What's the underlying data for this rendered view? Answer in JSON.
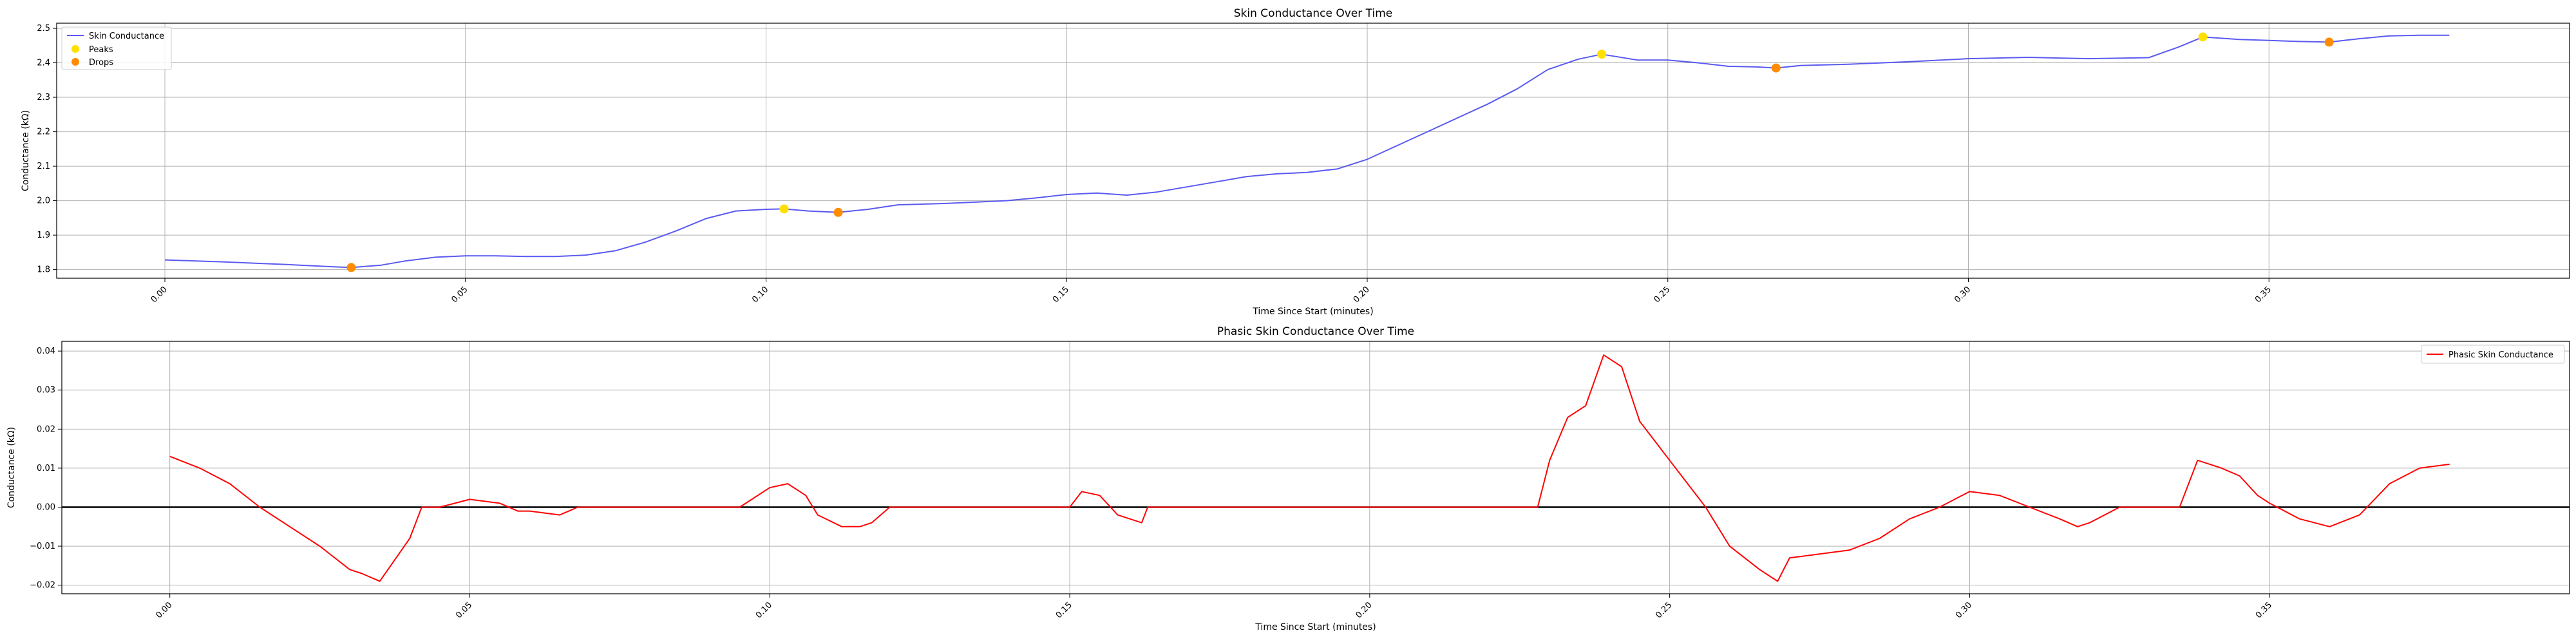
{
  "chart_data": [
    {
      "type": "line",
      "title": "Skin Conductance Over Time",
      "xlabel": "Time Since Start (minutes)",
      "ylabel": "Conductance (kΩ)",
      "xlim": [
        -0.018,
        0.4
      ],
      "ylim": [
        1.775,
        2.515
      ],
      "x_ticks": [
        0.0,
        0.05,
        0.1,
        0.15,
        0.2,
        0.25,
        0.3,
        0.35
      ],
      "x_tick_labels": [
        "0.00",
        "0.05",
        "0.10",
        "0.15",
        "0.20",
        "0.25",
        "0.30",
        "0.35"
      ],
      "y_ticks": [
        1.8,
        1.9,
        2.0,
        2.1,
        2.2,
        2.3,
        2.4,
        2.5
      ],
      "y_tick_labels": [
        "1.8",
        "1.9",
        "2.0",
        "2.1",
        "2.2",
        "2.3",
        "2.4",
        "2.5"
      ],
      "grid": true,
      "legend_position": "top-left",
      "series": [
        {
          "name": "Skin Conductance",
          "kind": "line",
          "color": "#5a5af0",
          "x": [
            0.0,
            0.01,
            0.02,
            0.028,
            0.031,
            0.036,
            0.04,
            0.045,
            0.05,
            0.055,
            0.06,
            0.065,
            0.07,
            0.075,
            0.08,
            0.085,
            0.09,
            0.095,
            0.1,
            0.103,
            0.107,
            0.112,
            0.117,
            0.122,
            0.13,
            0.14,
            0.145,
            0.15,
            0.155,
            0.16,
            0.165,
            0.17,
            0.175,
            0.18,
            0.185,
            0.19,
            0.195,
            0.2,
            0.205,
            0.21,
            0.215,
            0.22,
            0.225,
            0.23,
            0.235,
            0.239,
            0.245,
            0.25,
            0.255,
            0.26,
            0.265,
            0.268,
            0.272,
            0.28,
            0.29,
            0.3,
            0.31,
            0.32,
            0.33,
            0.335,
            0.339,
            0.345,
            0.35,
            0.355,
            0.36,
            0.365,
            0.37,
            0.375,
            0.38
          ],
          "y": [
            1.828,
            1.822,
            1.815,
            1.808,
            1.806,
            1.813,
            1.825,
            1.836,
            1.84,
            1.84,
            1.838,
            1.838,
            1.842,
            1.855,
            1.88,
            1.912,
            1.948,
            1.97,
            1.975,
            1.976,
            1.97,
            1.966,
            1.975,
            1.988,
            1.992,
            2.0,
            2.008,
            2.018,
            2.022,
            2.016,
            2.025,
            2.04,
            2.055,
            2.07,
            2.078,
            2.082,
            2.092,
            2.12,
            2.16,
            2.2,
            2.24,
            2.28,
            2.325,
            2.38,
            2.41,
            2.425,
            2.408,
            2.408,
            2.4,
            2.39,
            2.388,
            2.385,
            2.392,
            2.396,
            2.403,
            2.412,
            2.416,
            2.412,
            2.415,
            2.446,
            2.475,
            2.468,
            2.465,
            2.462,
            2.46,
            2.47,
            2.478,
            2.48,
            2.48
          ]
        },
        {
          "name": "Peaks",
          "kind": "scatter",
          "color": "#ffe000",
          "x": [
            0.103,
            0.239,
            0.339
          ],
          "y": [
            1.976,
            2.425,
            2.475
          ]
        },
        {
          "name": "Drops",
          "kind": "scatter",
          "color": "#ff8c00",
          "x": [
            0.031,
            0.112,
            0.268,
            0.36
          ],
          "y": [
            1.806,
            1.966,
            2.385,
            2.46
          ]
        }
      ]
    },
    {
      "type": "line",
      "title": "Phasic Skin Conductance Over Time",
      "xlabel": "Time Since Start (minutes)",
      "ylabel": "Conductance (kΩ)",
      "xlim": [
        -0.018,
        0.4
      ],
      "ylim": [
        -0.0222,
        0.0425
      ],
      "x_ticks": [
        0.0,
        0.05,
        0.1,
        0.15,
        0.2,
        0.25,
        0.3,
        0.35
      ],
      "x_tick_labels": [
        "0.00",
        "0.05",
        "0.10",
        "0.15",
        "0.20",
        "0.25",
        "0.30",
        "0.35"
      ],
      "y_ticks": [
        -0.02,
        -0.01,
        0.0,
        0.01,
        0.02,
        0.03,
        0.04
      ],
      "y_tick_labels": [
        "−0.02",
        "−0.01",
        "0.00",
        "0.01",
        "0.02",
        "0.03",
        "0.04"
      ],
      "grid": true,
      "legend_position": "top-right",
      "zero_line": true,
      "series": [
        {
          "name": "Phasic Skin Conductance",
          "kind": "line",
          "color": "#ff0000",
          "x": [
            0.0,
            0.005,
            0.01,
            0.015,
            0.02,
            0.025,
            0.03,
            0.032,
            0.035,
            0.04,
            0.042,
            0.045,
            0.05,
            0.055,
            0.058,
            0.06,
            0.065,
            0.068,
            0.07,
            0.08,
            0.09,
            0.095,
            0.1,
            0.103,
            0.106,
            0.108,
            0.112,
            0.115,
            0.117,
            0.12,
            0.13,
            0.14,
            0.15,
            0.152,
            0.155,
            0.158,
            0.162,
            0.163,
            0.165,
            0.17,
            0.18,
            0.19,
            0.2,
            0.21,
            0.22,
            0.228,
            0.23,
            0.233,
            0.236,
            0.239,
            0.242,
            0.245,
            0.247,
            0.25,
            0.253,
            0.256,
            0.26,
            0.265,
            0.268,
            0.27,
            0.275,
            0.28,
            0.285,
            0.29,
            0.295,
            0.3,
            0.305,
            0.31,
            0.315,
            0.318,
            0.32,
            0.325,
            0.33,
            0.335,
            0.338,
            0.342,
            0.345,
            0.348,
            0.35,
            0.355,
            0.36,
            0.365,
            0.37,
            0.375,
            0.38
          ],
          "y": [
            0.013,
            0.01,
            0.006,
            0.0,
            -0.005,
            -0.01,
            -0.016,
            -0.017,
            -0.019,
            -0.008,
            0.0,
            0.0,
            0.002,
            0.001,
            -0.001,
            -0.001,
            -0.002,
            0.0,
            0.0,
            0.0,
            0.0,
            0.0,
            0.005,
            0.006,
            0.003,
            -0.002,
            -0.005,
            -0.005,
            -0.004,
            0.0,
            0.0,
            0.0,
            0.0,
            0.004,
            0.003,
            -0.002,
            -0.004,
            0.0,
            0.0,
            0.0,
            0.0,
            0.0,
            0.0,
            0.0,
            0.0,
            0.0,
            0.012,
            0.023,
            0.026,
            0.039,
            0.036,
            0.022,
            0.018,
            0.012,
            0.006,
            0.0,
            -0.01,
            -0.016,
            -0.019,
            -0.013,
            -0.012,
            -0.011,
            -0.008,
            -0.003,
            0.0,
            0.004,
            0.003,
            0.0,
            -0.003,
            -0.005,
            -0.004,
            0.0,
            0.0,
            0.0,
            0.012,
            0.01,
            0.008,
            0.003,
            0.001,
            -0.003,
            -0.005,
            -0.002,
            0.006,
            0.01,
            0.011
          ]
        }
      ]
    }
  ]
}
